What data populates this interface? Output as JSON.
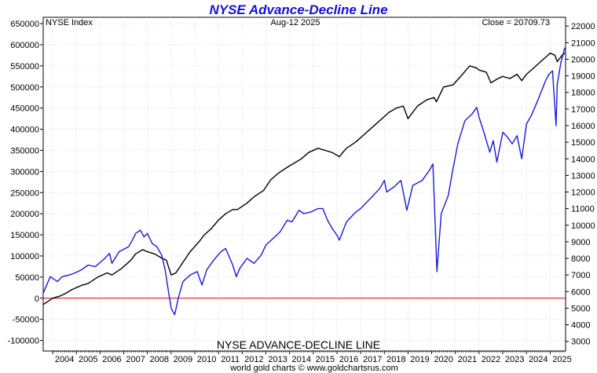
{
  "chart_data": {
    "type": "line",
    "title": "NYSE Advance-Decline Line",
    "subtitle_left": "NYSE Index",
    "subtitle_center": "Aug-12  2025",
    "subtitle_right": "Close = 20709.73",
    "xlabel": "NYSE ADVANCE-DECLINE LINE",
    "credit": "world gold charts © www.goldchartsrus.com",
    "x_ticks": [
      "2004",
      "2005",
      "2006",
      "2007",
      "2008",
      "2009",
      "2010",
      "2011",
      "2012",
      "2013",
      "2014",
      "2015",
      "2016",
      "2017",
      "2018",
      "2019",
      "2020",
      "2021",
      "2022",
      "2023",
      "2024",
      "2025"
    ],
    "x_range": [
      2003.6,
      2025.65
    ],
    "y_left": {
      "ticks": [
        -100000,
        -50000,
        0,
        50000,
        100000,
        150000,
        200000,
        250000,
        300000,
        350000,
        400000,
        450000,
        500000,
        550000,
        600000,
        650000
      ],
      "range": [
        -125000,
        665000
      ],
      "zero_color": "#e00000"
    },
    "y_right": {
      "ticks": [
        3000,
        4000,
        5000,
        6000,
        7000,
        8000,
        9000,
        10000,
        11000,
        12000,
        13000,
        14000,
        15000,
        16000,
        17000,
        18000,
        19000,
        20000,
        21000,
        22000
      ],
      "range": [
        2418,
        22530
      ]
    },
    "series": [
      {
        "axis": "left",
        "color": "#000000",
        "x": [
          2003.6,
          2004.0,
          2004.3,
          2004.5,
          2004.8,
          2005.2,
          2005.5,
          2005.9,
          2006.3,
          2006.5,
          2006.9,
          2007.3,
          2007.5,
          2007.8,
          2008.0,
          2008.3,
          2008.6,
          2008.8,
          2009.0,
          2009.2,
          2009.5,
          2009.8,
          2010.2,
          2010.4,
          2010.7,
          2011.0,
          2011.3,
          2011.6,
          2011.8,
          2012.2,
          2012.5,
          2012.9,
          2013.2,
          2013.5,
          2013.9,
          2014.2,
          2014.5,
          2014.8,
          2015.2,
          2015.5,
          2015.8,
          2016.1,
          2016.4,
          2016.8,
          2017.2,
          2017.6,
          2018.0,
          2018.2,
          2018.5,
          2018.8,
          2019.0,
          2019.4,
          2019.8,
          2020.1,
          2020.2,
          2020.5,
          2020.9,
          2021.3,
          2021.6,
          2021.9,
          2022.0,
          2022.3,
          2022.5,
          2022.8,
          2023.0,
          2023.3,
          2023.6,
          2023.8,
          2024.0,
          2024.3,
          2024.6,
          2024.9,
          2025.0,
          2025.2,
          2025.3,
          2025.5,
          2025.62
        ],
        "values": [
          -15000,
          0,
          5000,
          10000,
          20000,
          30000,
          35000,
          50000,
          60000,
          55000,
          70000,
          90000,
          105000,
          115000,
          110000,
          105000,
          95000,
          90000,
          55000,
          60000,
          85000,
          110000,
          135000,
          150000,
          165000,
          185000,
          200000,
          210000,
          210000,
          225000,
          240000,
          255000,
          280000,
          295000,
          310000,
          320000,
          330000,
          345000,
          355000,
          350000,
          345000,
          335000,
          355000,
          370000,
          390000,
          410000,
          430000,
          440000,
          450000,
          455000,
          425000,
          455000,
          470000,
          475000,
          465000,
          500000,
          505000,
          530000,
          550000,
          545000,
          540000,
          535000,
          510000,
          520000,
          525000,
          520000,
          530000,
          515000,
          530000,
          545000,
          560000,
          575000,
          580000,
          575000,
          560000,
          575000,
          580000
        ]
      },
      {
        "axis": "right",
        "color": "#1a1adc",
        "x": [
          2003.6,
          2003.9,
          2004.2,
          2004.4,
          2004.7,
          2004.9,
          2005.2,
          2005.5,
          2005.8,
          2006.2,
          2006.4,
          2006.5,
          2006.8,
          2007.2,
          2007.4,
          2007.5,
          2007.7,
          2007.85,
          2008.0,
          2008.2,
          2008.4,
          2008.6,
          2008.75,
          2008.9,
          2009.0,
          2009.15,
          2009.3,
          2009.5,
          2009.8,
          2010.1,
          2010.3,
          2010.5,
          2010.8,
          2011.1,
          2011.3,
          2011.6,
          2011.75,
          2011.9,
          2012.2,
          2012.5,
          2012.8,
          2013.0,
          2013.3,
          2013.6,
          2013.9,
          2014.1,
          2014.4,
          2014.6,
          2014.9,
          2015.2,
          2015.4,
          2015.6,
          2015.8,
          2016.0,
          2016.1,
          2016.4,
          2016.8,
          2017.0,
          2017.4,
          2017.8,
          2018.0,
          2018.1,
          2018.4,
          2018.7,
          2018.95,
          2019.2,
          2019.6,
          2019.9,
          2020.05,
          2020.15,
          2020.22,
          2020.4,
          2020.7,
          2020.9,
          2021.1,
          2021.4,
          2021.7,
          2021.9,
          2022.0,
          2022.2,
          2022.45,
          2022.6,
          2022.75,
          2023.0,
          2023.2,
          2023.4,
          2023.6,
          2023.8,
          2024.0,
          2024.2,
          2024.5,
          2024.8,
          2024.95,
          2025.1,
          2025.25,
          2025.3,
          2025.45,
          2025.62
        ],
        "values": [
          5900,
          6900,
          6600,
          6900,
          7000,
          7100,
          7300,
          7600,
          7500,
          8000,
          8300,
          7700,
          8400,
          8700,
          9200,
          9500,
          9700,
          9300,
          9500,
          8900,
          8700,
          8200,
          7300,
          5900,
          5000,
          4600,
          5600,
          6600,
          7000,
          7200,
          6400,
          7300,
          7900,
          8400,
          8600,
          7600,
          6900,
          7400,
          8000,
          7700,
          8200,
          8800,
          9200,
          9600,
          10300,
          10200,
          10900,
          10700,
          10800,
          11000,
          11000,
          10300,
          9800,
          9400,
          9100,
          10200,
          10800,
          11000,
          11600,
          12200,
          12700,
          12000,
          12300,
          12700,
          10900,
          12400,
          12700,
          13300,
          13700,
          10000,
          7200,
          10700,
          11800,
          13400,
          14900,
          16300,
          16700,
          17100,
          16500,
          15600,
          14400,
          15100,
          13800,
          15600,
          15300,
          14900,
          15400,
          14000,
          16100,
          16600,
          17600,
          18700,
          19100,
          19300,
          16000,
          18500,
          19800,
          20700
        ]
      }
    ]
  }
}
